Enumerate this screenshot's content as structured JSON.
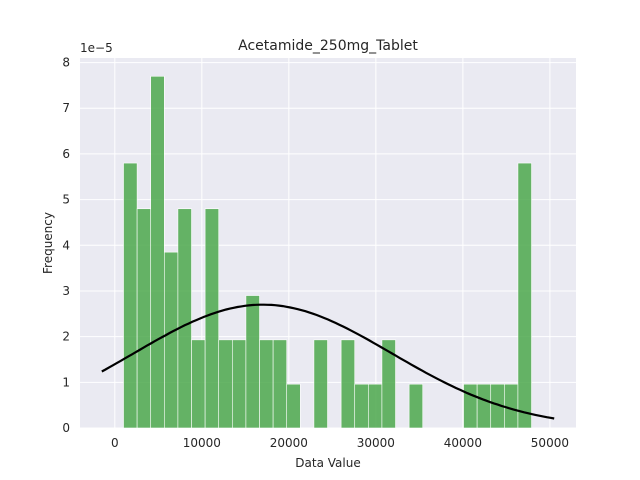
{
  "chart_data": {
    "type": "histogram",
    "title": "Acetamide_250mg_Tablet",
    "xlabel": "Data Value",
    "ylabel": "Frequency",
    "y_scale_label": "1e−5",
    "xlim": [
      -4000,
      53000
    ],
    "ylim": [
      0,
      8.1
    ],
    "x_ticks": [
      0,
      10000,
      20000,
      30000,
      40000,
      50000
    ],
    "x_tick_labels": [
      "0",
      "10000",
      "20000",
      "30000",
      "40000",
      "50000"
    ],
    "y_ticks": [
      0,
      1,
      2,
      3,
      4,
      5,
      6,
      7,
      8
    ],
    "y_tick_labels": [
      "0",
      "1",
      "2",
      "3",
      "4",
      "5",
      "6",
      "7",
      "8"
    ],
    "bins": {
      "start": 1000,
      "width": 1563,
      "heights": [
        5.8,
        4.8,
        7.7,
        3.85,
        4.8,
        1.93,
        4.8,
        1.93,
        1.93,
        2.9,
        1.93,
        1.93,
        0.96,
        0,
        1.93,
        0,
        1.93,
        0.96,
        0.96,
        1.93,
        0,
        0.96,
        0,
        0,
        0,
        0.96,
        0.96,
        0.96,
        0.96,
        5.8
      ]
    },
    "bar_color": "#4CA84C",
    "density_curve": {
      "color": "#000000",
      "mean": 17000,
      "std": 14800,
      "peak": 2.7,
      "x_start": -1500,
      "x_end": 50500
    },
    "style": "seaborn-darkgrid",
    "grid": true,
    "legend": "none"
  }
}
